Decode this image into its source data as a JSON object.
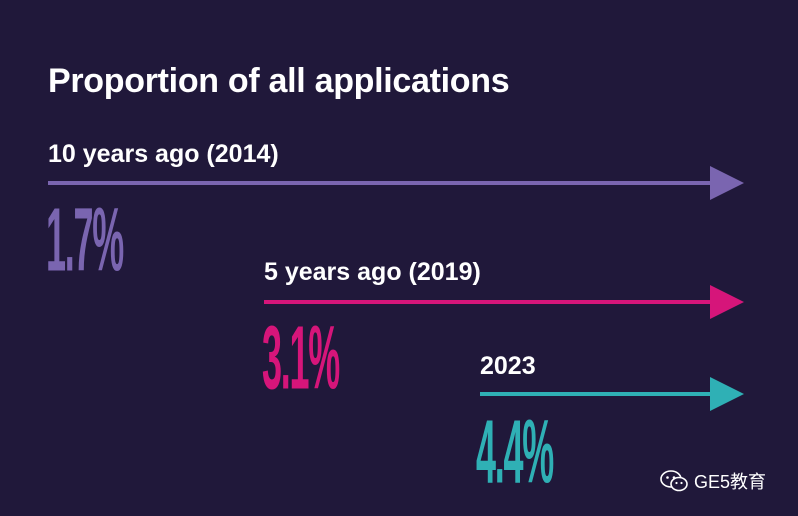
{
  "chart_data": {
    "type": "infographic-stat",
    "title": "Proportion of all applications",
    "series": [
      {
        "period": "10 years ago (2014)",
        "value": 1.7,
        "display": "1.7%",
        "color": "#7a65b0"
      },
      {
        "period": "5 years ago (2019)",
        "value": 3.1,
        "display": "3.1%",
        "color": "#d6157a"
      },
      {
        "period": "2023",
        "value": 4.4,
        "display": "4.4%",
        "color": "#2fb0b5"
      }
    ]
  },
  "watermark": {
    "text": "GE5教育",
    "icon": "wechat-icon"
  },
  "colors": {
    "background": "#20183a",
    "text": "#ffffff"
  }
}
